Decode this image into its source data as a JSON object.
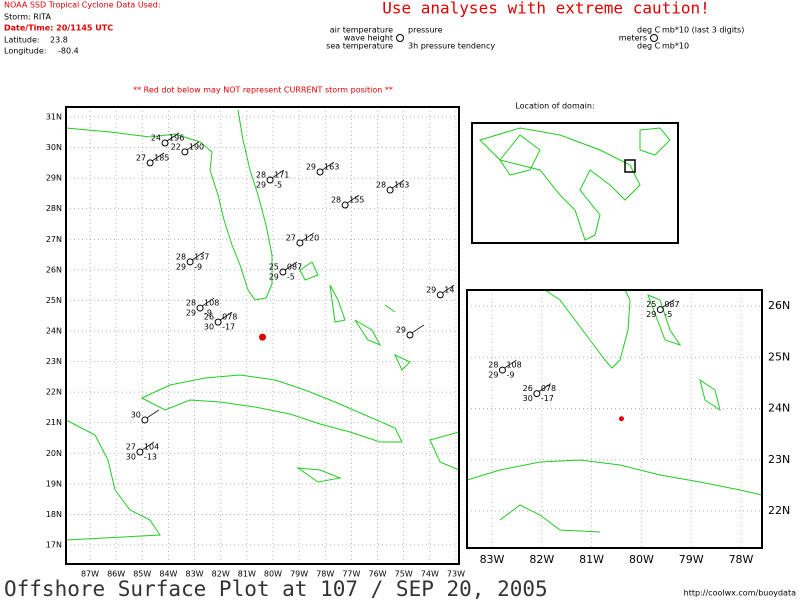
{
  "header": {
    "agency": "NOAA SSD Tropical Cyclone Data Used:",
    "storm": "Storm: RITA",
    "datetime": "Date/Time: 20/1145 UTC",
    "latitude_label": "Latitude:",
    "longitude_label": "Longitude:",
    "caution": "Use analyses with extreme caution!"
  },
  "legend": {
    "air_temperature": "air temperature",
    "pressure": "pressure",
    "wave_height": "wave height",
    "sea_temperature": "sea temperature",
    "tendency": "3h pressure tendency",
    "unit_air": "deg C",
    "unit_pressure": "mb*10 (last 3 digits)",
    "unit_wave": "meters",
    "unit_sea": "deg C",
    "unit_tendency": "mb*10"
  },
  "warning": "** Red dot below may NOT represent CURRENT storm position **",
  "storm": {
    "lat": 23.8,
    "lon": -80.4
  },
  "main_map": {
    "lat_ticks": [
      {
        "value": 31,
        "label": "31N"
      },
      {
        "value": 30,
        "label": "30N"
      },
      {
        "value": 29,
        "label": "29N"
      },
      {
        "value": 28,
        "label": "28N"
      },
      {
        "value": 27,
        "label": "27N"
      },
      {
        "value": 26,
        "label": "26N"
      },
      {
        "value": 25,
        "label": "25N"
      },
      {
        "value": 24,
        "label": "24N"
      },
      {
        "value": 23,
        "label": "23N"
      },
      {
        "value": 22,
        "label": "22N"
      },
      {
        "value": 21,
        "label": "21N"
      },
      {
        "value": 20,
        "label": "20N"
      },
      {
        "value": 19,
        "label": "19N"
      },
      {
        "value": 18,
        "label": "18N"
      },
      {
        "value": 17,
        "label": "17N"
      }
    ],
    "lon_ticks": [
      {
        "value": -87,
        "label": "87W"
      },
      {
        "value": -86,
        "label": "86W"
      },
      {
        "value": -85,
        "label": "85W"
      },
      {
        "value": -84,
        "label": "84W"
      },
      {
        "value": -83,
        "label": "83W"
      },
      {
        "value": -82,
        "label": "82W"
      },
      {
        "value": -81,
        "label": "81W"
      },
      {
        "value": -80,
        "label": "80W"
      },
      {
        "value": -79,
        "label": "79W"
      },
      {
        "value": -78,
        "label": "78W"
      },
      {
        "value": -77,
        "label": "77W"
      },
      {
        "value": -76,
        "label": "76W"
      },
      {
        "value": -75,
        "label": "75W"
      },
      {
        "value": -74,
        "label": "74W"
      },
      {
        "value": -73,
        "label": "73W"
      }
    ]
  },
  "stations": [
    {
      "lat": 30.15,
      "lon": -84.13,
      "temp": "24",
      "pres": "196"
    },
    {
      "lat": 29.86,
      "lon": -83.37,
      "temp": "22",
      "pres": "190"
    },
    {
      "lat": 29.5,
      "lon": -84.7,
      "temp": "27",
      "pres": "185"
    },
    {
      "lat": 28.94,
      "lon": -80.11,
      "temp": "28",
      "pres": "171",
      "sst": "29",
      "tend": "-5"
    },
    {
      "lat": 29.2,
      "lon": -78.2,
      "temp": "29",
      "pres": "163"
    },
    {
      "lat": 28.61,
      "lon": -75.52,
      "temp": "28",
      "pres": "163"
    },
    {
      "lat": 28.12,
      "lon": -77.24,
      "temp": "28",
      "pres": "155"
    },
    {
      "lat": 26.88,
      "lon": -78.97,
      "temp": "27",
      "pres": "120"
    },
    {
      "lat": 26.26,
      "lon": -83.17,
      "temp": "28",
      "pres": "137",
      "sst": "29",
      "tend": "-9"
    },
    {
      "lat": 24.75,
      "lon": -82.79,
      "temp": "28",
      "pres": "108",
      "sst": "29",
      "tend": "-9"
    },
    {
      "lat": 24.29,
      "lon": -82.1,
      "temp": "26",
      "pres": "078",
      "sst": "30",
      "tend": "-17"
    },
    {
      "lat": 25.93,
      "lon": -79.62,
      "temp": "25",
      "pres": "087",
      "sst": "29",
      "tend": "-5"
    },
    {
      "lat": 21.09,
      "lon": -84.9,
      "temp": "30"
    },
    {
      "lat": 20.04,
      "lon": -85.09,
      "temp": "27",
      "pres": "104",
      "sst": "30",
      "tend": "-13"
    },
    {
      "lat": 23.87,
      "lon": -74.76,
      "temp": "29"
    },
    {
      "lat": 25.18,
      "lon": -73.6,
      "temp": "29",
      "pres": "14"
    }
  ],
  "inset": {
    "title": "Location of domain:"
  },
  "zoom_map": {
    "lat_ticks": [
      {
        "value": 26,
        "label": "26N"
      },
      {
        "value": 25,
        "label": "25N"
      },
      {
        "value": 24,
        "label": "24N"
      },
      {
        "value": 23,
        "label": "23N"
      },
      {
        "value": 22,
        "label": "22N"
      }
    ],
    "lon_ticks": [
      {
        "value": -83,
        "label": "83W"
      },
      {
        "value": -82,
        "label": "82W"
      },
      {
        "value": -81,
        "label": "81W"
      },
      {
        "value": -80,
        "label": "80W"
      },
      {
        "value": -79,
        "label": "79W"
      },
      {
        "value": -78,
        "label": "78W"
      }
    ]
  },
  "footer": {
    "title": "Offshore Surface Plot at 107 / SEP 20, 2005",
    "url": "http://coolwx.com/buoydata"
  }
}
